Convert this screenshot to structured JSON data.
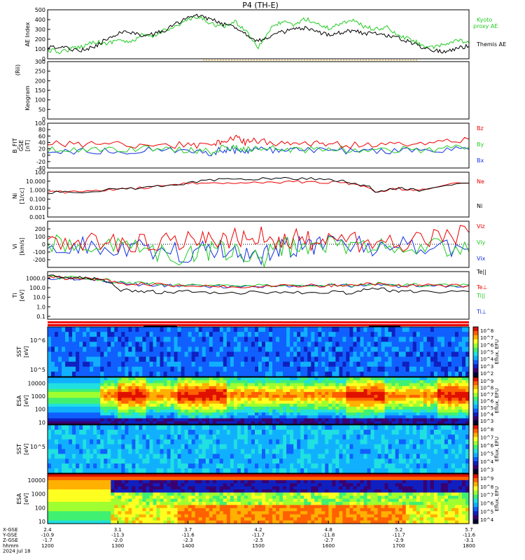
{
  "title": "P4 (TH-E)",
  "footer": {
    "row_labels": [
      "X-GSE",
      "Y-GSE",
      "Z-GSE",
      "hhmm",
      "2024 Jul 18"
    ],
    "x": [
      "2.4",
      "3.1",
      "3.7",
      "4.2",
      "4.8",
      "5.2",
      "5.7"
    ],
    "y": [
      "-10.9",
      "-11.3",
      "-11.6",
      "-11.7",
      "-11.8",
      "-11.7",
      "-11.6"
    ],
    "z": [
      "-1.7",
      "-2.0",
      "-2.3",
      "-2.5",
      "-2.7",
      "-2.9",
      "-3.1"
    ],
    "hhmm": [
      "1200",
      "1300",
      "1400",
      "1500",
      "1600",
      "1700",
      "1800"
    ]
  },
  "colors": {
    "red": "#ee0000",
    "green": "#22cc22",
    "blue": "#1030e0",
    "black": "#000000",
    "orange_dots": "#e0a000",
    "purple_dots": "#5000a0"
  },
  "chart_data": [
    {
      "type": "line",
      "panel": "ae",
      "ylabel": "AE Index",
      "ylim": [
        0,
        500
      ],
      "yticks": [
        "500",
        "400",
        "300",
        "200",
        "100",
        "0"
      ],
      "series": [
        {
          "name": "Kyoto proxy AE",
          "color": "#22cc22",
          "x": [
            1200,
            1210,
            1220,
            1230,
            1240,
            1250,
            1300,
            1310,
            1320,
            1330,
            1340,
            1350,
            1400,
            1410,
            1420,
            1430,
            1440,
            1450,
            1500,
            1510,
            1520,
            1530,
            1540,
            1550,
            1600,
            1610,
            1620,
            1630,
            1640,
            1650,
            1700,
            1710,
            1720,
            1730,
            1740,
            1750,
            1800
          ],
          "values": [
            90,
            70,
            100,
            130,
            180,
            150,
            200,
            160,
            240,
            220,
            300,
            330,
            400,
            420,
            360,
            320,
            380,
            280,
            120,
            300,
            380,
            340,
            410,
            360,
            310,
            360,
            400,
            330,
            300,
            320,
            230,
            200,
            140,
            110,
            150,
            190,
            160
          ]
        },
        {
          "name": "Themis AE",
          "color": "#000000",
          "x": [
            1200,
            1210,
            1220,
            1230,
            1240,
            1250,
            1300,
            1310,
            1320,
            1330,
            1340,
            1350,
            1400,
            1410,
            1420,
            1430,
            1440,
            1450,
            1500,
            1510,
            1520,
            1530,
            1540,
            1550,
            1600,
            1610,
            1620,
            1630,
            1640,
            1650,
            1700,
            1710,
            1720,
            1730,
            1740,
            1750,
            1800
          ],
          "values": [
            110,
            120,
            100,
            90,
            120,
            200,
            260,
            280,
            230,
            250,
            290,
            360,
            420,
            440,
            400,
            350,
            330,
            250,
            180,
            230,
            270,
            300,
            310,
            270,
            250,
            270,
            290,
            260,
            260,
            240,
            210,
            170,
            120,
            90,
            70,
            110,
            130
          ]
        }
      ]
    },
    {
      "type": "heatmap",
      "panel": "keogram",
      "ylabel": "Keogram",
      "ylabel2": "(Rii)",
      "ylim": [
        0,
        300
      ],
      "yticks": [
        "300",
        "250",
        "200",
        "150",
        "100",
        "50",
        "0"
      ]
    },
    {
      "type": "line",
      "panel": "bfield",
      "ylabel": "B_FIT",
      "ylabel2": "GSE",
      "ylabel3": "[nT]",
      "ylim": [
        -40,
        100
      ],
      "yticks": [
        "100",
        "80",
        "60",
        "40",
        "20",
        "0",
        "-20",
        "-40"
      ],
      "series": [
        {
          "name": "Bz",
          "color": "#ee0000",
          "x": [
            1200,
            1230,
            1300,
            1330,
            1400,
            1420,
            1430,
            1440,
            1450,
            1500,
            1520,
            1540,
            1600,
            1630,
            1700,
            1730,
            1800
          ],
          "values": [
            35,
            33,
            35,
            30,
            32,
            30,
            45,
            55,
            40,
            45,
            38,
            35,
            35,
            30,
            35,
            40,
            50
          ]
        },
        {
          "name": "By",
          "color": "#22cc22",
          "x": [
            1200,
            1230,
            1300,
            1330,
            1400,
            1420,
            1430,
            1440,
            1450,
            1500,
            1520,
            1540,
            1600,
            1630,
            1700,
            1730,
            1800
          ],
          "values": [
            15,
            18,
            15,
            22,
            15,
            10,
            25,
            20,
            20,
            22,
            18,
            18,
            20,
            15,
            18,
            18,
            25
          ]
        },
        {
          "name": "Bx",
          "color": "#1030e0",
          "x": [
            1200,
            1230,
            1300,
            1330,
            1400,
            1420,
            1430,
            1440,
            1450,
            1500,
            1520,
            1540,
            1600,
            1630,
            1700,
            1730,
            1800
          ],
          "values": [
            12,
            14,
            12,
            18,
            12,
            8,
            18,
            16,
            15,
            18,
            14,
            14,
            15,
            12,
            15,
            14,
            18
          ]
        }
      ]
    },
    {
      "type": "line",
      "panel": "density",
      "ylabel": "Ni",
      "ylabel2": "[1/cc]",
      "log": true,
      "ylim": [
        0.001,
        100
      ],
      "yticks": [
        "100",
        "10.000",
        "1.000",
        "0.100",
        "0.010",
        "0.001"
      ],
      "series": [
        {
          "name": "Ne",
          "color": "#ee0000",
          "x": [
            1200,
            1230,
            1300,
            1330,
            1400,
            1430,
            1500,
            1530,
            1600,
            1620,
            1640,
            1700,
            1720,
            1800
          ],
          "values": [
            0.55,
            0.7,
            1.2,
            2.0,
            5.0,
            7.0,
            8.0,
            8.5,
            8.0,
            5.0,
            0.7,
            1.5,
            1.0,
            6.0
          ]
        },
        {
          "name": "Ni",
          "color": "#000000",
          "x": [
            1200,
            1230,
            1300,
            1330,
            1400,
            1430,
            1500,
            1530,
            1600,
            1620,
            1640,
            1700,
            1720,
            1800
          ],
          "values": [
            0.55,
            0.7,
            1.2,
            2.0,
            6.0,
            15.0,
            20.0,
            20.0,
            16.0,
            6.0,
            0.7,
            1.5,
            1.0,
            6.0
          ]
        }
      ]
    },
    {
      "type": "line",
      "panel": "velocity",
      "ylabel": "Vi",
      "ylabel2": "[km/s]",
      "ylim": [
        -300,
        300
      ],
      "yticks": [
        "200",
        "100",
        "0",
        "-100",
        "-200"
      ],
      "series": [
        {
          "name": "Viz",
          "color": "#ee0000",
          "x": [
            1200,
            1230,
            1300,
            1330,
            1400,
            1420,
            1440,
            1500,
            1520,
            1540,
            1600,
            1630,
            1700,
            1730,
            1800
          ],
          "values": [
            0,
            10,
            20,
            40,
            60,
            20,
            80,
            100,
            70,
            60,
            40,
            30,
            40,
            60,
            150
          ]
        },
        {
          "name": "Viy",
          "color": "#22cc22",
          "x": [
            1200,
            1230,
            1300,
            1330,
            1400,
            1420,
            1440,
            1500,
            1520,
            1540,
            1600,
            1630,
            1700,
            1730,
            1800
          ],
          "values": [
            0,
            -10,
            -40,
            -80,
            -150,
            -80,
            -120,
            -200,
            -50,
            -30,
            0,
            -20,
            -40,
            -20,
            -100
          ]
        },
        {
          "name": "Vix",
          "color": "#1030e0",
          "x": [
            1200,
            1230,
            1300,
            1330,
            1400,
            1420,
            1440,
            1500,
            1520,
            1540,
            1600,
            1630,
            1700,
            1730,
            1800
          ],
          "values": [
            -10,
            -20,
            -50,
            -60,
            -120,
            -60,
            -80,
            -150,
            -40,
            -20,
            -10,
            -30,
            -30,
            -10,
            -60
          ]
        }
      ]
    },
    {
      "type": "line",
      "panel": "temperature",
      "ylabel": "Ti",
      "ylabel2": "[eV]",
      "log": true,
      "ylim": [
        0.05,
        5000
      ],
      "yticks": [
        "1000.0",
        "100.0",
        "10.0",
        "1.0",
        "0.1"
      ],
      "series": [
        {
          "name": "Te||",
          "color": "#000000",
          "x": [
            1200,
            1220,
            1240,
            1300,
            1320,
            1340,
            1400,
            1430,
            1500,
            1530,
            1600,
            1620,
            1640,
            1700,
            1720,
            1800
          ],
          "values": [
            1500,
            1200,
            1000,
            60,
            40,
            35,
            40,
            30,
            30,
            30,
            35,
            30,
            90,
            35,
            45,
            40
          ]
        },
        {
          "name": "Te⊥",
          "color": "#ee0000",
          "x": [
            1200,
            1220,
            1240,
            1300,
            1320,
            1340,
            1400,
            1430,
            1500,
            1530,
            1600,
            1620,
            1640,
            1700,
            1720,
            1800
          ],
          "values": [
            1200,
            1000,
            900,
            300,
            250,
            200,
            180,
            150,
            150,
            160,
            180,
            170,
            250,
            160,
            180,
            170
          ]
        },
        {
          "name": "Ti||",
          "color": "#22cc22",
          "x": [
            1200,
            1220,
            1240,
            1300,
            1320,
            1340,
            1400,
            1430,
            1500,
            1530,
            1600,
            1620,
            1640,
            1700,
            1720,
            1800
          ],
          "values": [
            1300,
            1100,
            900,
            350,
            280,
            220,
            190,
            170,
            160,
            170,
            190,
            180,
            300,
            180,
            200,
            200
          ]
        },
        {
          "name": "Ti⊥",
          "color": "#1030e0",
          "x": [
            1200,
            1220,
            1240,
            1300,
            1320,
            1340,
            1400,
            1430,
            1500,
            1530,
            1600,
            1620,
            1640,
            1700,
            1720,
            1800
          ],
          "values": [
            1100,
            900,
            800,
            280,
            220,
            180,
            160,
            140,
            140,
            150,
            170,
            160,
            250,
            150,
            170,
            170
          ]
        }
      ]
    },
    {
      "type": "heatmap",
      "panel": "sst_i",
      "ylabel": "SST",
      "ylabel2": "[eV]",
      "yticks": [
        "10^6",
        "10^5"
      ],
      "colorbar": {
        "label": "Eflux, EFU",
        "ticks": [
          "10^8",
          "10^7",
          "10^6",
          "10^5",
          "10^4",
          "10^3",
          "10^2"
        ]
      }
    },
    {
      "type": "heatmap",
      "panel": "esa_i",
      "ylabel": "ESA",
      "ylabel2": "[eV]",
      "yticks": [
        "10000",
        "1000",
        "100",
        "10"
      ],
      "colorbar": {
        "label": "Eflux, EFU",
        "ticks": [
          "10^9",
          "10^8",
          "10^7",
          "10^6",
          "10^5",
          "10^4",
          "10^3"
        ]
      }
    },
    {
      "type": "heatmap",
      "panel": "sst_e",
      "ylabel": "SST",
      "ylabel2": "[eV]",
      "yticks": [
        "10^5"
      ],
      "colorbar": {
        "label": "Eflux, EFU",
        "ticks": [
          "10^8",
          "10^7",
          "10^6",
          "10^5",
          "10^4",
          "10^3"
        ]
      }
    },
    {
      "type": "heatmap",
      "panel": "esa_e",
      "ylabel": "ESA",
      "ylabel2": "[eV]",
      "yticks": [
        "10000",
        "1000",
        "100",
        "10"
      ],
      "colorbar": {
        "label": "Eflux, EFU",
        "ticks": [
          "10^9",
          "10^8",
          "10^7",
          "10^6",
          "10^5",
          "10^4"
        ]
      }
    }
  ]
}
